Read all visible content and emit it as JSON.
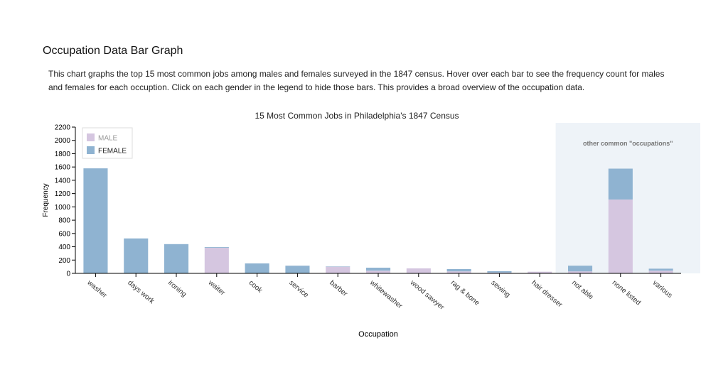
{
  "header": {
    "title": "Occupation Data Bar Graph",
    "description": "This chart graphs the top 15 most common jobs among males and females surveyed in the 1847 census. Hover over each bar to see the frequency count for males and females for each occuption. Click on each gender in the legend to hide those bars. This provides a broad overview of the occupation data."
  },
  "chart_data": {
    "type": "bar",
    "stacked": true,
    "title": "15 Most Common Jobs in Philadelphia's 1847 Census",
    "xlabel": "Occupation",
    "ylabel": "Frequency",
    "ylim": [
      0,
      2200
    ],
    "yticks": [
      0,
      200,
      400,
      600,
      800,
      1000,
      1200,
      1400,
      1600,
      1800,
      2000,
      2200
    ],
    "grid": false,
    "legend_position": "top-left",
    "categories": [
      "washer",
      "days work",
      "ironing",
      "waiter",
      "cook",
      "service",
      "barber",
      "whitewasher",
      "wood sawyer",
      "rag & bone",
      "sewing",
      "hair dresser",
      "not able",
      "none listed",
      "various"
    ],
    "series": [
      {
        "name": "MALE",
        "color": "#d5c6e0",
        "values": [
          0,
          0,
          0,
          385,
          0,
          0,
          100,
          40,
          75,
          30,
          12,
          25,
          30,
          1110,
          40
        ]
      },
      {
        "name": "FEMALE",
        "color": "#8fb3d1",
        "values": [
          1580,
          525,
          440,
          10,
          150,
          115,
          5,
          45,
          0,
          35,
          20,
          0,
          85,
          465,
          30
        ]
      }
    ],
    "highlight_region": {
      "label": "other common \"occupations\"",
      "categories": [
        "not able",
        "none listed",
        "various"
      ],
      "color": "#eef3f8"
    }
  }
}
